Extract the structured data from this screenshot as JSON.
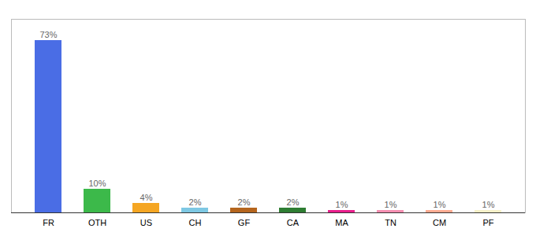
{
  "chart_data": {
    "type": "bar",
    "categories": [
      "FR",
      "OTH",
      "US",
      "CH",
      "GF",
      "CA",
      "MA",
      "TN",
      "CM",
      "PF"
    ],
    "values": [
      73,
      10,
      4,
      2,
      2,
      2,
      1,
      1,
      1,
      1
    ],
    "value_labels": [
      "73%",
      "10%",
      "4%",
      "2%",
      "2%",
      "2%",
      "1%",
      "1%",
      "1%",
      "1%"
    ],
    "colors": [
      "#4a6de5",
      "#3cb94a",
      "#f5a623",
      "#7ec8e3",
      "#b5651d",
      "#2e7d32",
      "#e91e8c",
      "#f48fb1",
      "#ffab91",
      "#f5f0c8"
    ],
    "ylim": [
      0,
      82
    ],
    "yticks": [],
    "grid": false,
    "data_labels": true,
    "tick_labels": "x"
  }
}
